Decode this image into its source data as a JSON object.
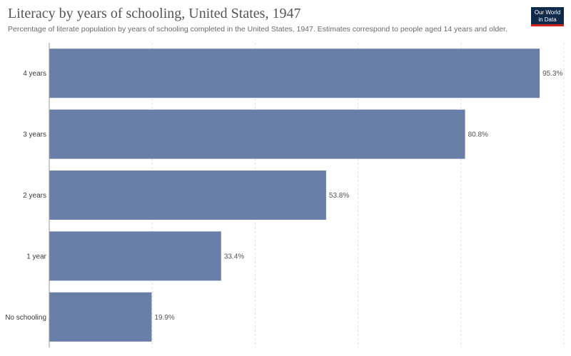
{
  "title": "Literacy by years of schooling, United States, 1947",
  "subtitle": "Percentage of literate population by years of schooling completed in the United States, 1947. Estimates correspond to people aged 14 years and older.",
  "logo": {
    "line1": "Our World",
    "line2": "in Data"
  },
  "colors": {
    "bar": "#6a7fa8",
    "logo_bg": "#0e2a4a",
    "logo_accent": "#ce261e"
  },
  "chart_data": {
    "type": "bar",
    "orientation": "horizontal",
    "categories": [
      "4 years",
      "3 years",
      "2 years",
      "1 year",
      "No schooling"
    ],
    "values": [
      95.3,
      80.8,
      53.8,
      33.4,
      19.9
    ],
    "value_labels": [
      "95.3%",
      "80.8%",
      "53.8%",
      "33.4%",
      "19.9%"
    ],
    "xlim": [
      0,
      100
    ],
    "grid": true
  }
}
